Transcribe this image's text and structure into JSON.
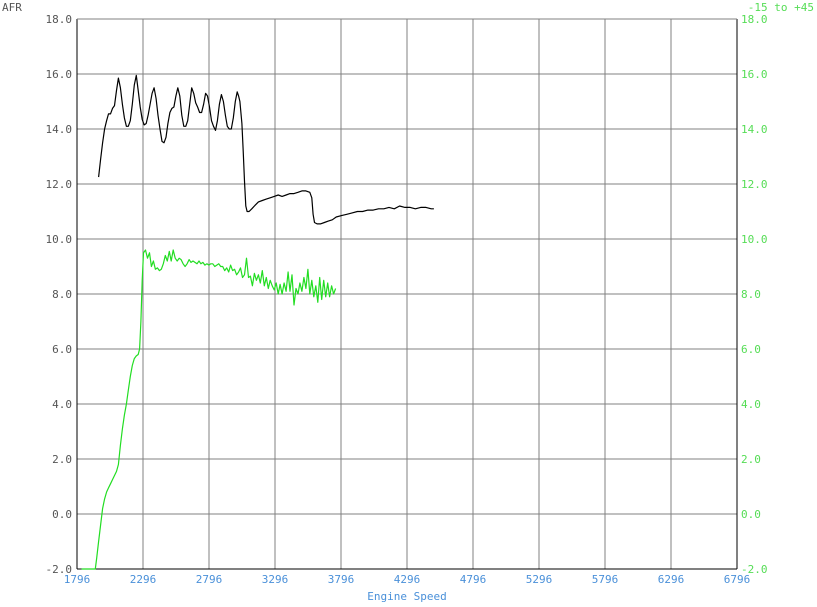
{
  "chart_data": {
    "type": "line",
    "title": "",
    "xlabel": "Engine Speed",
    "ylabel_left": "AFR",
    "ylabel_right": "-15 to +45",
    "xlim": [
      1796,
      6796
    ],
    "x_ticks": [
      "1796",
      "2296",
      "2796",
      "3296",
      "3796",
      "4296",
      "4796",
      "5296",
      "5796",
      "6296",
      "6796"
    ],
    "ylim_left": [
      -2.0,
      18.0
    ],
    "y_ticks_left": [
      "18.0",
      "16.0",
      "14.0",
      "12.0",
      "10.0",
      "8.0",
      "6.0",
      "4.0",
      "2.0",
      "0.0",
      "-2.0"
    ],
    "ylim_right": [
      -2.0,
      18.0
    ],
    "y_ticks_right": [
      "18.0",
      "16.0",
      "14.0",
      "12.0",
      "10.0",
      "8.0",
      "6.0",
      "4.0",
      "2.0",
      "0.0",
      "-2.0"
    ],
    "grid": true,
    "colors": {
      "axis": "#000000",
      "grid": "#808080",
      "x_tick_text": "#4a90d9",
      "left_tick_text": "#555555",
      "right_tick_text": "#55dd55",
      "afr_line": "#000000",
      "second_line": "#22dd22"
    },
    "series": [
      {
        "name": "",
        "axis": "left",
        "color": "#000000",
        "points": [
          [
            1960,
            12.25
          ],
          [
            1975,
            12.9
          ],
          [
            1990,
            13.5
          ],
          [
            2005,
            14.0
          ],
          [
            2020,
            14.3
          ],
          [
            2035,
            14.55
          ],
          [
            2050,
            14.55
          ],
          [
            2065,
            14.75
          ],
          [
            2080,
            14.85
          ],
          [
            2095,
            15.4
          ],
          [
            2110,
            15.85
          ],
          [
            2125,
            15.5
          ],
          [
            2140,
            14.9
          ],
          [
            2155,
            14.4
          ],
          [
            2170,
            14.1
          ],
          [
            2185,
            14.1
          ],
          [
            2200,
            14.3
          ],
          [
            2215,
            14.9
          ],
          [
            2230,
            15.6
          ],
          [
            2245,
            15.95
          ],
          [
            2260,
            15.4
          ],
          [
            2275,
            14.8
          ],
          [
            2290,
            14.35
          ],
          [
            2305,
            14.15
          ],
          [
            2320,
            14.2
          ],
          [
            2335,
            14.5
          ],
          [
            2350,
            14.9
          ],
          [
            2365,
            15.3
          ],
          [
            2380,
            15.5
          ],
          [
            2395,
            15.1
          ],
          [
            2410,
            14.5
          ],
          [
            2425,
            14.0
          ],
          [
            2440,
            13.55
          ],
          [
            2455,
            13.5
          ],
          [
            2470,
            13.7
          ],
          [
            2485,
            14.2
          ],
          [
            2500,
            14.6
          ],
          [
            2515,
            14.75
          ],
          [
            2530,
            14.8
          ],
          [
            2545,
            15.2
          ],
          [
            2560,
            15.5
          ],
          [
            2575,
            15.2
          ],
          [
            2590,
            14.5
          ],
          [
            2605,
            14.1
          ],
          [
            2620,
            14.1
          ],
          [
            2635,
            14.3
          ],
          [
            2650,
            14.9
          ],
          [
            2665,
            15.5
          ],
          [
            2680,
            15.3
          ],
          [
            2695,
            14.95
          ],
          [
            2710,
            14.8
          ],
          [
            2725,
            14.6
          ],
          [
            2740,
            14.6
          ],
          [
            2755,
            14.9
          ],
          [
            2770,
            15.3
          ],
          [
            2785,
            15.2
          ],
          [
            2800,
            14.8
          ],
          [
            2815,
            14.3
          ],
          [
            2830,
            14.1
          ],
          [
            2845,
            13.95
          ],
          [
            2860,
            14.3
          ],
          [
            2875,
            14.9
          ],
          [
            2890,
            15.25
          ],
          [
            2905,
            15.0
          ],
          [
            2920,
            14.5
          ],
          [
            2935,
            14.1
          ],
          [
            2950,
            14.0
          ],
          [
            2965,
            14.0
          ],
          [
            2980,
            14.4
          ],
          [
            2995,
            15.0
          ],
          [
            3010,
            15.35
          ],
          [
            3020,
            15.2
          ],
          [
            3030,
            15.0
          ],
          [
            3045,
            14.2
          ],
          [
            3055,
            13.2
          ],
          [
            3065,
            12.1
          ],
          [
            3075,
            11.2
          ],
          [
            3085,
            11.0
          ],
          [
            3100,
            11.0
          ],
          [
            3120,
            11.1
          ],
          [
            3140,
            11.2
          ],
          [
            3170,
            11.35
          ],
          [
            3200,
            11.4
          ],
          [
            3230,
            11.45
          ],
          [
            3260,
            11.5
          ],
          [
            3290,
            11.55
          ],
          [
            3320,
            11.6
          ],
          [
            3350,
            11.55
          ],
          [
            3380,
            11.6
          ],
          [
            3410,
            11.65
          ],
          [
            3440,
            11.65
          ],
          [
            3470,
            11.7
          ],
          [
            3500,
            11.75
          ],
          [
            3530,
            11.75
          ],
          [
            3560,
            11.7
          ],
          [
            3575,
            11.5
          ],
          [
            3585,
            10.9
          ],
          [
            3595,
            10.6
          ],
          [
            3615,
            10.55
          ],
          [
            3640,
            10.55
          ],
          [
            3670,
            10.6
          ],
          [
            3700,
            10.65
          ],
          [
            3730,
            10.7
          ],
          [
            3760,
            10.8
          ],
          [
            3800,
            10.85
          ],
          [
            3840,
            10.9
          ],
          [
            3880,
            10.95
          ],
          [
            3920,
            11.0
          ],
          [
            3960,
            11.0
          ],
          [
            4000,
            11.05
          ],
          [
            4040,
            11.05
          ],
          [
            4080,
            11.1
          ],
          [
            4120,
            11.1
          ],
          [
            4160,
            11.15
          ],
          [
            4200,
            11.1
          ],
          [
            4240,
            11.2
          ],
          [
            4280,
            11.15
          ],
          [
            4320,
            11.15
          ],
          [
            4360,
            11.1
          ],
          [
            4400,
            11.15
          ],
          [
            4440,
            11.15
          ],
          [
            4480,
            11.1
          ],
          [
            4500,
            11.1
          ]
        ]
      },
      {
        "name": "",
        "axis": "right",
        "color": "#22dd22",
        "points": [
          [
            1830,
            -2.0
          ],
          [
            1900,
            -2.0
          ],
          [
            1935,
            -2.0
          ],
          [
            1945,
            -1.6
          ],
          [
            1960,
            -1.0
          ],
          [
            1975,
            -0.4
          ],
          [
            1990,
            0.2
          ],
          [
            2005,
            0.55
          ],
          [
            2020,
            0.8
          ],
          [
            2035,
            0.95
          ],
          [
            2050,
            1.1
          ],
          [
            2065,
            1.25
          ],
          [
            2080,
            1.4
          ],
          [
            2095,
            1.55
          ],
          [
            2110,
            1.8
          ],
          [
            2125,
            2.5
          ],
          [
            2140,
            3.1
          ],
          [
            2155,
            3.6
          ],
          [
            2170,
            4.0
          ],
          [
            2185,
            4.5
          ],
          [
            2200,
            5.0
          ],
          [
            2215,
            5.4
          ],
          [
            2230,
            5.65
          ],
          [
            2245,
            5.75
          ],
          [
            2260,
            5.8
          ],
          [
            2270,
            6.0
          ],
          [
            2280,
            7.0
          ],
          [
            2290,
            8.5
          ],
          [
            2300,
            9.5
          ],
          [
            2315,
            9.6
          ],
          [
            2330,
            9.3
          ],
          [
            2345,
            9.5
          ],
          [
            2360,
            9.0
          ],
          [
            2375,
            9.2
          ],
          [
            2390,
            8.9
          ],
          [
            2405,
            8.95
          ],
          [
            2420,
            8.85
          ],
          [
            2435,
            8.9
          ],
          [
            2450,
            9.1
          ],
          [
            2465,
            9.4
          ],
          [
            2480,
            9.2
          ],
          [
            2495,
            9.55
          ],
          [
            2510,
            9.2
          ],
          [
            2525,
            9.6
          ],
          [
            2540,
            9.3
          ],
          [
            2555,
            9.2
          ],
          [
            2570,
            9.3
          ],
          [
            2585,
            9.25
          ],
          [
            2600,
            9.1
          ],
          [
            2615,
            9.0
          ],
          [
            2630,
            9.1
          ],
          [
            2645,
            9.25
          ],
          [
            2660,
            9.15
          ],
          [
            2675,
            9.2
          ],
          [
            2690,
            9.15
          ],
          [
            2705,
            9.1
          ],
          [
            2720,
            9.2
          ],
          [
            2735,
            9.1
          ],
          [
            2750,
            9.15
          ],
          [
            2765,
            9.05
          ],
          [
            2780,
            9.1
          ],
          [
            2795,
            9.05
          ],
          [
            2810,
            9.1
          ],
          [
            2825,
            9.1
          ],
          [
            2840,
            9.0
          ],
          [
            2855,
            9.05
          ],
          [
            2870,
            9.1
          ],
          [
            2885,
            9.0
          ],
          [
            2900,
            9.0
          ],
          [
            2915,
            8.85
          ],
          [
            2930,
            8.95
          ],
          [
            2945,
            8.8
          ],
          [
            2960,
            9.05
          ],
          [
            2975,
            8.85
          ],
          [
            2990,
            8.9
          ],
          [
            3005,
            8.7
          ],
          [
            3020,
            8.8
          ],
          [
            3035,
            8.95
          ],
          [
            3050,
            8.6
          ],
          [
            3065,
            8.7
          ],
          [
            3080,
            9.3
          ],
          [
            3095,
            8.6
          ],
          [
            3110,
            8.65
          ],
          [
            3125,
            8.3
          ],
          [
            3140,
            8.75
          ],
          [
            3155,
            8.5
          ],
          [
            3170,
            8.7
          ],
          [
            3185,
            8.4
          ],
          [
            3200,
            8.85
          ],
          [
            3215,
            8.3
          ],
          [
            3230,
            8.6
          ],
          [
            3245,
            8.2
          ],
          [
            3260,
            8.5
          ],
          [
            3275,
            8.3
          ],
          [
            3290,
            8.15
          ],
          [
            3305,
            8.4
          ],
          [
            3320,
            8.0
          ],
          [
            3335,
            8.35
          ],
          [
            3350,
            8.0
          ],
          [
            3365,
            8.4
          ],
          [
            3380,
            8.1
          ],
          [
            3395,
            8.8
          ],
          [
            3410,
            8.1
          ],
          [
            3425,
            8.7
          ],
          [
            3440,
            7.6
          ],
          [
            3455,
            8.2
          ],
          [
            3470,
            8.0
          ],
          [
            3485,
            8.4
          ],
          [
            3500,
            8.1
          ],
          [
            3515,
            8.6
          ],
          [
            3530,
            8.2
          ],
          [
            3545,
            8.9
          ],
          [
            3560,
            8.0
          ],
          [
            3575,
            8.5
          ],
          [
            3590,
            7.9
          ],
          [
            3605,
            8.3
          ],
          [
            3620,
            7.7
          ],
          [
            3635,
            8.6
          ],
          [
            3650,
            7.8
          ],
          [
            3665,
            8.5
          ],
          [
            3680,
            7.9
          ],
          [
            3695,
            8.4
          ],
          [
            3710,
            7.9
          ],
          [
            3725,
            8.3
          ],
          [
            3740,
            8.0
          ],
          [
            3755,
            8.2
          ]
        ]
      }
    ]
  }
}
